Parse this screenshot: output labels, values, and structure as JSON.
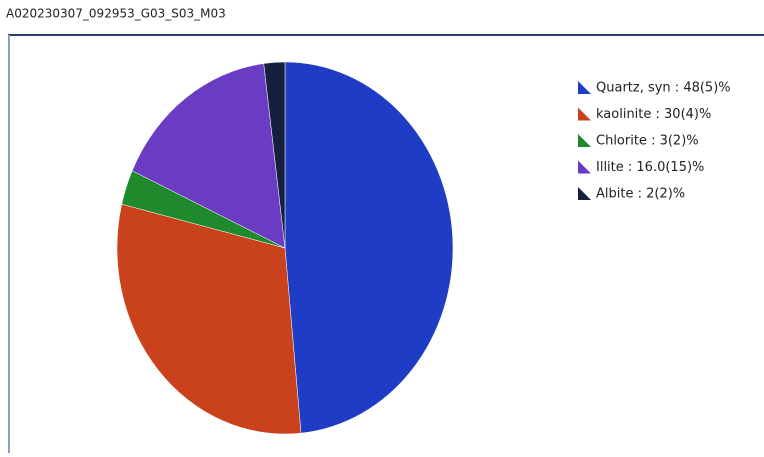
{
  "chart_data": {
    "type": "pie",
    "title": "A020230307_092953_G03_S03_M03",
    "categories": [
      "Quartz, syn : 48(5)%",
      "kaolinite : 30(4)%",
      "Chlorite : 3(2)%",
      "Illite : 16.0(15)%",
      "Albite : 2(2)%"
    ],
    "values": [
      48,
      30,
      3,
      16.0,
      2
    ],
    "colors": [
      "#1f3cc4",
      "#c9421c",
      "#1f8a2c",
      "#6a3cc4",
      "#16203e"
    ],
    "legend": "top-right"
  }
}
